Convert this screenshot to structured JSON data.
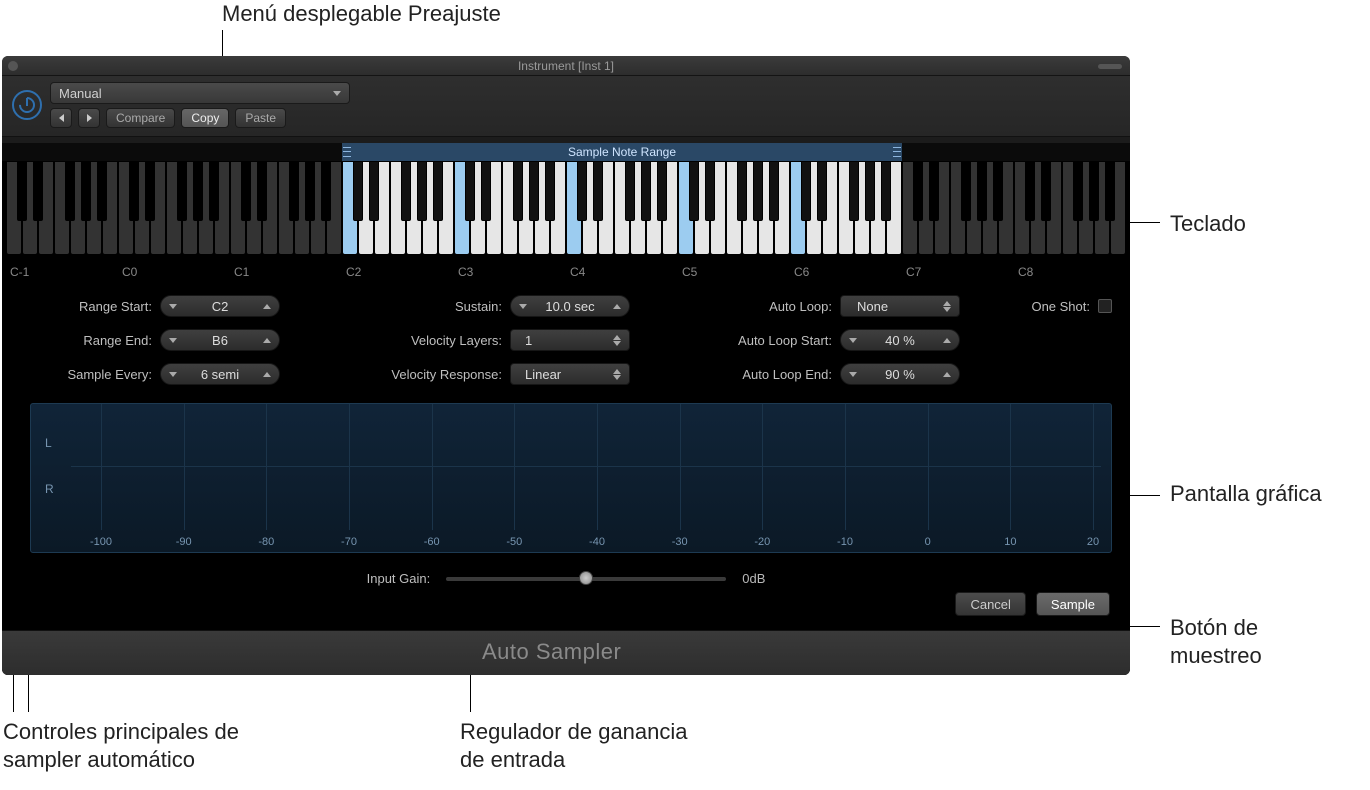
{
  "callouts": {
    "preset_menu": "Menú desplegable Preajuste",
    "keyboard": "Teclado",
    "graphic_display": "Pantalla gráfica",
    "sample_button": "Botón de\nmuestreo",
    "main_controls": "Controles principales de\nsampler automático",
    "input_gain": "Regulador de ganancia\nde entrada"
  },
  "window": {
    "title": "Instrument [Inst 1]",
    "preset": {
      "label": "Manual"
    },
    "buttons": {
      "compare": "Compare",
      "copy": "Copy",
      "paste": "Paste"
    },
    "footer": "Auto Sampler"
  },
  "keyboard": {
    "range_bar_label": "Sample Note Range",
    "octave_labels": [
      "C-1",
      "C0",
      "C1",
      "C2",
      "C3",
      "C4",
      "C5",
      "C6",
      "C7",
      "C8"
    ],
    "range_start_white_index": 21,
    "range_end_white_index": 55,
    "sample_every_semi": 6
  },
  "params": {
    "range_start": {
      "label": "Range Start:",
      "value": "C2"
    },
    "range_end": {
      "label": "Range End:",
      "value": "B6"
    },
    "sample_every": {
      "label": "Sample Every:",
      "value": "6 semi"
    },
    "sustain": {
      "label": "Sustain:",
      "value": "10.0 sec"
    },
    "velocity_layers": {
      "label": "Velocity Layers:",
      "value": "1"
    },
    "velocity_response": {
      "label": "Velocity Response:",
      "value": "Linear"
    },
    "auto_loop": {
      "label": "Auto Loop:",
      "value": "None"
    },
    "auto_loop_start": {
      "label": "Auto Loop Start:",
      "value": "40 %"
    },
    "auto_loop_end": {
      "label": "Auto Loop End:",
      "value": "90 %"
    },
    "one_shot": {
      "label": "One Shot:"
    }
  },
  "waveform": {
    "L": "L",
    "R": "R",
    "axis": [
      "-100",
      "-90",
      "-80",
      "-70",
      "-60",
      "-50",
      "-40",
      "-30",
      "-20",
      "-10",
      "0",
      "10",
      "20"
    ]
  },
  "input_gain": {
    "label": "Input Gain:",
    "readout": "0dB",
    "position_pct": 50
  },
  "actions": {
    "cancel": "Cancel",
    "sample": "Sample"
  },
  "colors": {
    "plugin_bg": "#1c1c1c",
    "accent_blue": "#2e6fae",
    "range_bg": "#2a4866",
    "sample_key": "#9cccf0",
    "waveform_bg_top": "#102438",
    "waveform_bg_bottom": "#0b1926"
  }
}
